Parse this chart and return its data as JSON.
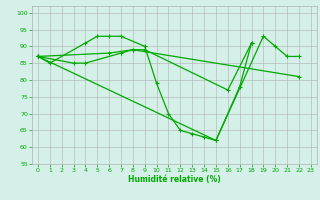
{
  "title": "",
  "xlabel": "Humidité relative (%)",
  "ylabel": "",
  "bg_color": "#d4f0e8",
  "grid_color": "#b0b0b0",
  "line_color": "#00aa00",
  "xlim": [
    -0.5,
    23.5
  ],
  "ylim": [
    55,
    102
  ],
  "yticks": [
    55,
    60,
    65,
    70,
    75,
    80,
    85,
    90,
    95,
    100
  ],
  "xticks": [
    0,
    1,
    2,
    3,
    4,
    5,
    6,
    7,
    8,
    9,
    10,
    11,
    12,
    13,
    14,
    15,
    16,
    17,
    18,
    19,
    20,
    21,
    22,
    23
  ],
  "series": [
    [
      87,
      85,
      null,
      null,
      91,
      93,
      93,
      93,
      null,
      90,
      79,
      70,
      65,
      64,
      63,
      62,
      null,
      null,
      null,
      93,
      90,
      87,
      87,
      null
    ],
    [
      87,
      null,
      null,
      85,
      85,
      null,
      null,
      88,
      89,
      89,
      null,
      null,
      null,
      null,
      null,
      null,
      77,
      null,
      91,
      null,
      null,
      null,
      null,
      null
    ],
    [
      87,
      null,
      null,
      null,
      null,
      null,
      null,
      null,
      null,
      null,
      null,
      null,
      null,
      null,
      null,
      62,
      null,
      78,
      91,
      null,
      null,
      null,
      null,
      null
    ],
    [
      87,
      null,
      null,
      null,
      null,
      null,
      88,
      null,
      89,
      null,
      null,
      null,
      null,
      null,
      null,
      null,
      null,
      null,
      null,
      null,
      null,
      null,
      81,
      null
    ]
  ]
}
